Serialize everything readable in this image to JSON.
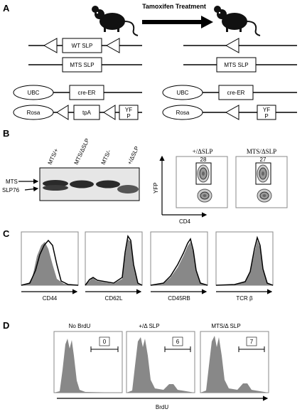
{
  "panel_labels": {
    "a": "A",
    "b": "B",
    "c": "C",
    "d": "D"
  },
  "panel_a": {
    "treatment": "Tamoxifen Treatment",
    "left": {
      "wt_slp": "WT SLP",
      "mts_slp": "MTS SLP",
      "ubc": "UBC",
      "cre_er": "cre-ER",
      "rosa": "Rosa",
      "tpa": "tpA",
      "yfp": "YF\nP"
    },
    "right": {
      "mts_slp": "MTS SLP",
      "ubc": "UBC",
      "cre_er": "cre-ER",
      "rosa": "Rosa",
      "yfp": "YF\nP"
    }
  },
  "panel_b": {
    "lanes": [
      "MTS/+",
      "MTS/ΔSLP",
      "MTS/-",
      "+/ΔSLP"
    ],
    "band_labels": [
      "MTS",
      "SLP76"
    ],
    "flow": {
      "ylabel": "YFP",
      "xlabel": "CD4",
      "plots": [
        {
          "title": "+/ΔSLP",
          "value": "28"
        },
        {
          "title": "MTS/ΔSLP",
          "value": "27"
        }
      ]
    }
  },
  "panel_c": {
    "markers": [
      "CD44",
      "CD62L",
      "CD45RB",
      "TCR β"
    ]
  },
  "panel_d": {
    "xlabel": "BrdU",
    "plots": [
      {
        "title": "No BrdU",
        "value": "0"
      },
      {
        "title": "+/Δ SLP",
        "value": "6"
      },
      {
        "title": "MTS/Δ SLP",
        "value": "7"
      }
    ]
  },
  "ticks": [
    "10⁰",
    "10¹",
    "10²",
    "10³",
    "10⁴"
  ]
}
